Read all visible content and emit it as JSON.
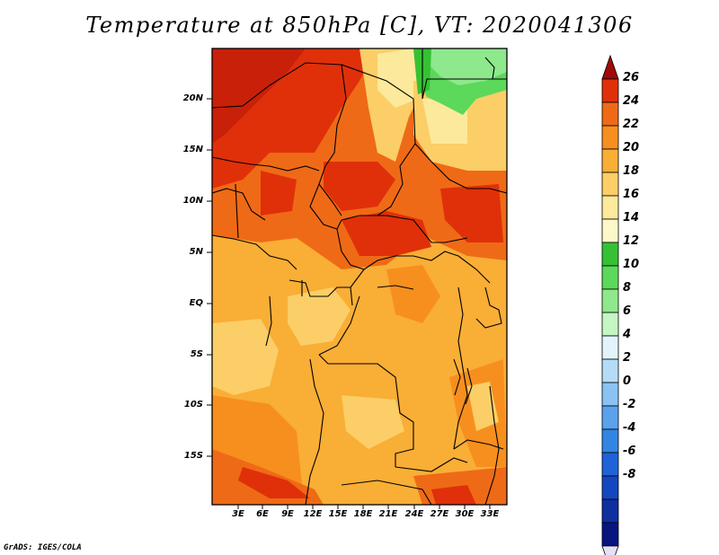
{
  "title": "Temperature at 850hPa [C], VT: 2020041306",
  "credit": "GrADS: IGES/COLA",
  "latitude_labels": [
    "20N",
    "15N",
    "10N",
    "5N",
    "EQ",
    "5S",
    "10S",
    "15S"
  ],
  "longitude_labels": [
    "3E",
    "6E",
    "9E",
    "12E",
    "15E",
    "18E",
    "21E",
    "24E",
    "27E",
    "30E",
    "33E"
  ],
  "colorbar": {
    "labels": [
      "26",
      "24",
      "22",
      "20",
      "18",
      "16",
      "14",
      "12",
      "10",
      "8",
      "6",
      "4",
      "2",
      "0",
      "-2",
      "-4",
      "-6",
      "-8"
    ],
    "colors": [
      "#a00a0a",
      "#e0300a",
      "#ef6a16",
      "#f78f1e",
      "#f9ae36",
      "#fbce67",
      "#fde99b",
      "#fcf8c8",
      "#36c134",
      "#5cd85a",
      "#8ee88c",
      "#c4f5c2",
      "#e2f4fb",
      "#b4dcf6",
      "#8ac3f3",
      "#5aa2ec",
      "#3385e4",
      "#1e64d8",
      "#1347c0",
      "#0d2fa0",
      "#081480",
      "#e4e0f8"
    ]
  }
}
